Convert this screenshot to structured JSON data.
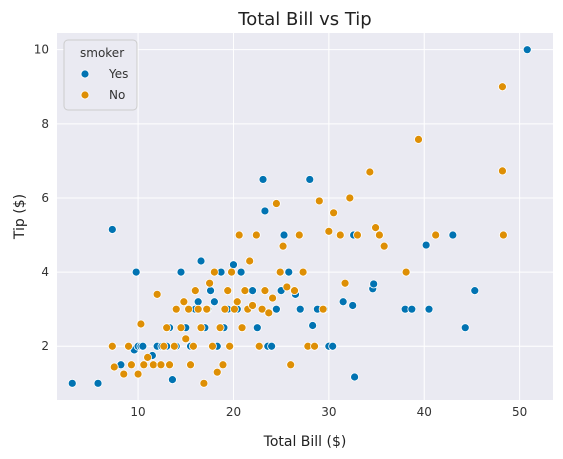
{
  "chart_data": {
    "type": "scatter",
    "title": "Total Bill vs Tip",
    "xlabel": "Total Bill ($)",
    "ylabel": "Tip ($)",
    "xlim": [
      1.5,
      53.5
    ],
    "ylim": [
      0.55,
      10.45
    ],
    "xticks": [
      10,
      20,
      30,
      40,
      50
    ],
    "yticks": [
      2,
      4,
      6,
      8,
      10
    ],
    "grid": true,
    "background": "#eaeaf2",
    "legend": {
      "title": "smoker",
      "placement": "top-left"
    },
    "series": [
      {
        "name": "Yes",
        "color": "#0173b2",
        "points": [
          [
            3.1,
            1.0
          ],
          [
            5.8,
            1.0
          ],
          [
            7.3,
            5.15
          ],
          [
            8.2,
            1.5
          ],
          [
            9.6,
            1.9
          ],
          [
            9.8,
            4.0
          ],
          [
            10.0,
            2.0
          ],
          [
            10.3,
            2.0
          ],
          [
            10.5,
            2.0
          ],
          [
            11.5,
            1.75
          ],
          [
            12.0,
            2.0
          ],
          [
            12.5,
            2.0
          ],
          [
            13.0,
            2.0
          ],
          [
            13.3,
            2.5
          ],
          [
            13.6,
            1.1
          ],
          [
            14.0,
            2.0
          ],
          [
            14.5,
            4.0
          ],
          [
            15.0,
            2.5
          ],
          [
            15.5,
            2.0
          ],
          [
            16.0,
            3.0
          ],
          [
            16.3,
            3.2
          ],
          [
            16.6,
            4.3
          ],
          [
            17.0,
            2.5
          ],
          [
            17.3,
            3.0
          ],
          [
            17.6,
            3.5
          ],
          [
            18.0,
            3.2
          ],
          [
            18.3,
            2.0
          ],
          [
            18.7,
            4.0
          ],
          [
            19.0,
            2.5
          ],
          [
            19.4,
            3.0
          ],
          [
            20.0,
            4.2
          ],
          [
            20.4,
            3.0
          ],
          [
            20.8,
            4.0
          ],
          [
            21.3,
            3.5
          ],
          [
            22.0,
            3.5
          ],
          [
            22.5,
            2.5
          ],
          [
            23.1,
            6.5
          ],
          [
            23.3,
            5.65
          ],
          [
            23.6,
            2.0
          ],
          [
            24.0,
            2.0
          ],
          [
            24.5,
            3.0
          ],
          [
            25.0,
            3.5
          ],
          [
            25.3,
            5.0
          ],
          [
            25.8,
            4.0
          ],
          [
            26.5,
            3.4
          ],
          [
            27.0,
            3.0
          ],
          [
            28.0,
            6.5
          ],
          [
            28.3,
            2.56
          ],
          [
            28.8,
            3.0
          ],
          [
            29.5,
            3.0
          ],
          [
            30.0,
            2.0
          ],
          [
            30.4,
            2.0
          ],
          [
            31.5,
            3.2
          ],
          [
            32.5,
            3.1
          ],
          [
            32.7,
            1.17
          ],
          [
            32.6,
            5.0
          ],
          [
            34.6,
            3.55
          ],
          [
            34.7,
            3.68
          ],
          [
            38.0,
            3.0
          ],
          [
            38.7,
            3.0
          ],
          [
            40.2,
            4.73
          ],
          [
            40.5,
            3.0
          ],
          [
            43.0,
            5.0
          ],
          [
            44.3,
            2.5
          ],
          [
            45.3,
            3.5
          ],
          [
            50.8,
            10.0
          ]
        ]
      },
      {
        "name": "No",
        "color": "#de8f05",
        "points": [
          [
            7.3,
            2.0
          ],
          [
            7.5,
            1.44
          ],
          [
            8.5,
            1.25
          ],
          [
            9.0,
            2.0
          ],
          [
            9.3,
            1.5
          ],
          [
            10.0,
            1.25
          ],
          [
            10.3,
            2.6
          ],
          [
            10.6,
            1.5
          ],
          [
            11.0,
            1.7
          ],
          [
            11.6,
            1.5
          ],
          [
            12.0,
            3.4
          ],
          [
            12.4,
            1.5
          ],
          [
            12.7,
            2.0
          ],
          [
            13.0,
            2.5
          ],
          [
            13.3,
            1.5
          ],
          [
            13.8,
            2.0
          ],
          [
            14.0,
            3.0
          ],
          [
            14.5,
            2.5
          ],
          [
            14.8,
            3.2
          ],
          [
            15.0,
            2.2
          ],
          [
            15.3,
            3.0
          ],
          [
            15.5,
            1.5
          ],
          [
            15.8,
            2.0
          ],
          [
            16.0,
            3.5
          ],
          [
            16.3,
            3.0
          ],
          [
            16.6,
            2.5
          ],
          [
            16.9,
            1.0
          ],
          [
            17.2,
            3.0
          ],
          [
            17.5,
            3.7
          ],
          [
            17.8,
            2.0
          ],
          [
            18.0,
            4.0
          ],
          [
            18.3,
            1.3
          ],
          [
            18.6,
            2.5
          ],
          [
            18.9,
            1.5
          ],
          [
            19.1,
            3.0
          ],
          [
            19.4,
            3.5
          ],
          [
            19.6,
            2.0
          ],
          [
            19.8,
            4.0
          ],
          [
            20.1,
            3.0
          ],
          [
            20.4,
            3.2
          ],
          [
            20.6,
            5.0
          ],
          [
            20.9,
            2.5
          ],
          [
            21.2,
            3.5
          ],
          [
            21.5,
            3.0
          ],
          [
            21.7,
            4.3
          ],
          [
            22.0,
            3.1
          ],
          [
            22.4,
            5.0
          ],
          [
            22.7,
            2.0
          ],
          [
            23.0,
            3.0
          ],
          [
            23.3,
            3.5
          ],
          [
            23.7,
            2.9
          ],
          [
            24.1,
            3.3
          ],
          [
            24.5,
            5.85
          ],
          [
            24.9,
            4.0
          ],
          [
            25.2,
            4.7
          ],
          [
            25.6,
            3.6
          ],
          [
            26.0,
            1.5
          ],
          [
            26.4,
            3.5
          ],
          [
            26.9,
            5.0
          ],
          [
            27.3,
            4.0
          ],
          [
            27.8,
            2.0
          ],
          [
            28.5,
            2.0
          ],
          [
            29.0,
            5.92
          ],
          [
            29.4,
            3.0
          ],
          [
            30.0,
            5.1
          ],
          [
            30.5,
            5.6
          ],
          [
            31.2,
            5.0
          ],
          [
            31.7,
            3.7
          ],
          [
            32.2,
            6.0
          ],
          [
            33.0,
            5.0
          ],
          [
            34.3,
            6.7
          ],
          [
            34.9,
            5.2
          ],
          [
            35.3,
            5.0
          ],
          [
            35.8,
            4.7
          ],
          [
            38.1,
            4.0
          ],
          [
            39.4,
            7.58
          ],
          [
            41.2,
            5.0
          ],
          [
            48.2,
            9.0
          ],
          [
            48.2,
            6.73
          ],
          [
            48.3,
            5.0
          ]
        ]
      }
    ]
  }
}
